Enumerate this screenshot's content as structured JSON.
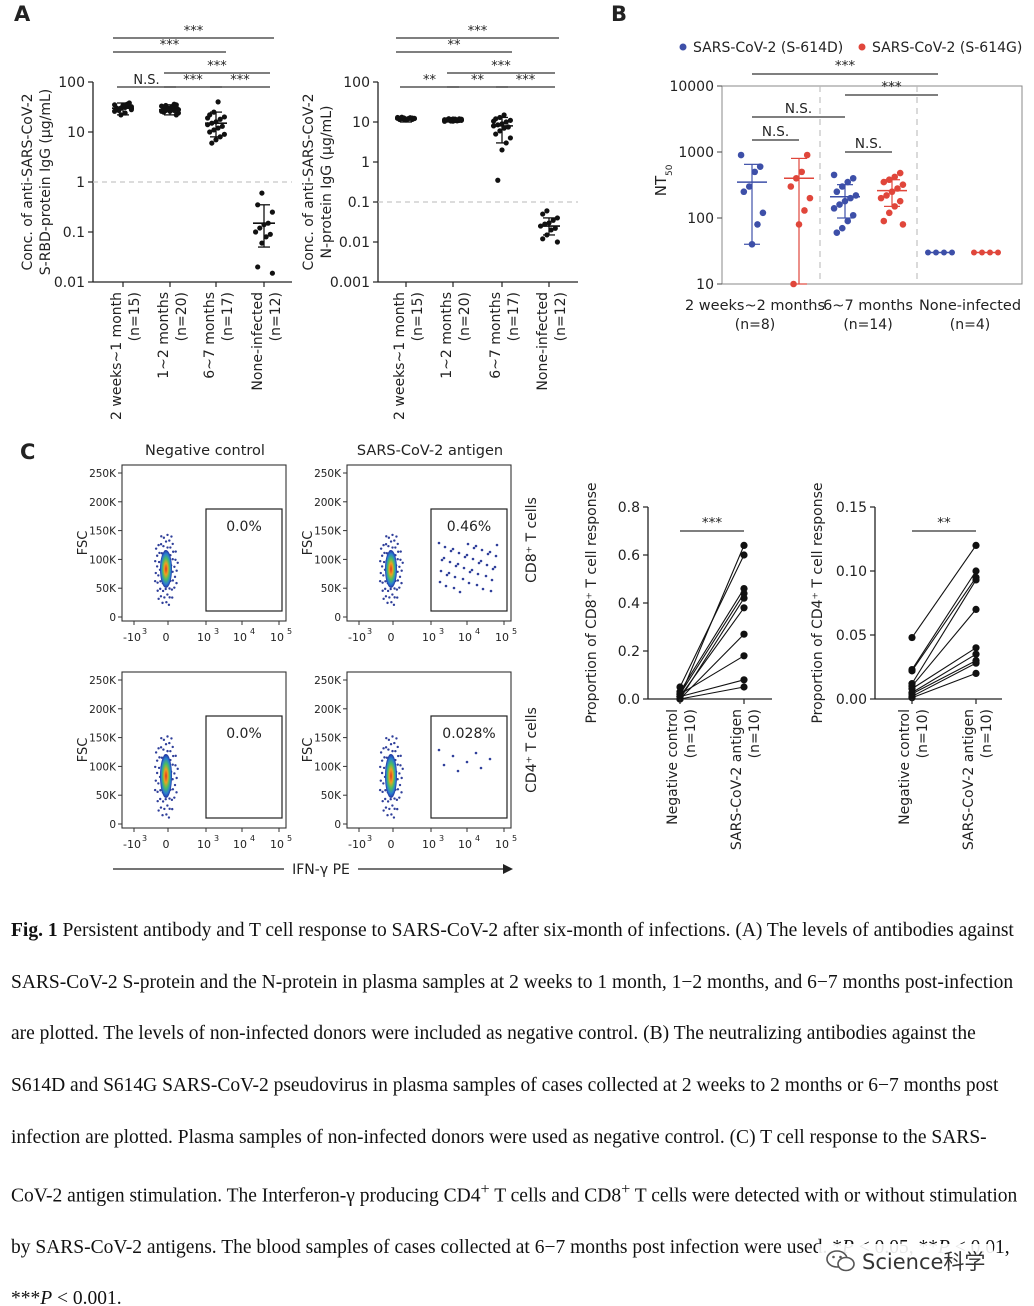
{
  "panels": {
    "A": "A",
    "B": "B",
    "C": "C"
  },
  "sig": {
    "ns": "N.S.",
    "s3": "***",
    "s2": "**"
  },
  "chart_data": [
    {
      "id": "A-left",
      "type": "scatter",
      "scale": "log10",
      "ylabel_line1": "Conc. of anti-SARS-CoV-2",
      "ylabel_line2": "S-RBD-protein IgG (μg/mL)",
      "ylim": [
        0.01,
        100
      ],
      "yticks": [
        {
          "v": 0.01,
          "label": "0.01"
        },
        {
          "v": 0.1,
          "label": "0.1"
        },
        {
          "v": 1,
          "label": "1"
        },
        {
          "v": 10,
          "label": "10"
        },
        {
          "v": 100,
          "label": "100"
        }
      ],
      "threshold": 1,
      "categories": [
        {
          "name": "2 weeks~1 month",
          "n": "(n=15)",
          "median": 30,
          "err": [
            22,
            38
          ],
          "points": [
            35,
            33,
            31,
            30,
            29,
            28,
            36,
            34,
            27,
            26,
            38,
            24,
            22,
            30,
            32
          ]
        },
        {
          "name": "1~2 months",
          "n": "(n=20)",
          "median": 28,
          "err": [
            22,
            35
          ],
          "points": [
            35,
            32,
            30,
            29,
            28,
            27,
            26,
            34,
            33,
            31,
            30,
            29,
            25,
            24,
            36,
            28,
            27,
            26,
            22,
            30
          ]
        },
        {
          "name": "6~7 months",
          "n": "(n=17)",
          "median": 15,
          "err": [
            8,
            25
          ],
          "points": [
            40,
            25,
            22,
            20,
            18,
            16,
            15,
            14,
            13,
            12,
            11,
            10,
            9,
            8,
            7,
            6,
            19
          ]
        },
        {
          "name": "None-infected",
          "n": "(n=12)",
          "median": 0.15,
          "err": [
            0.05,
            0.35
          ],
          "points": [
            0.6,
            0.35,
            0.25,
            0.15,
            0.14,
            0.12,
            0.1,
            0.09,
            0.08,
            0.06,
            0.02,
            0.015
          ]
        }
      ],
      "comparisons": [
        {
          "from": 0,
          "to": 3,
          "label": "***"
        },
        {
          "from": 0,
          "to": 2,
          "label": "***"
        },
        {
          "from": 1,
          "to": 3,
          "label": "***"
        },
        {
          "from": 0,
          "to": 1,
          "label": "N.S."
        },
        {
          "from": 1,
          "to": 2,
          "label": "***"
        },
        {
          "from": 2,
          "to": 3,
          "label": "***"
        }
      ]
    },
    {
      "id": "A-right",
      "type": "scatter",
      "scale": "log10",
      "ylabel_line1": "Conc. of anti-SARS-CoV-2",
      "ylabel_line2": "N-protein IgG (μg/mL)",
      "ylim": [
        0.001,
        100
      ],
      "yticks": [
        {
          "v": 0.001,
          "label": "0.001"
        },
        {
          "v": 0.01,
          "label": "0.01"
        },
        {
          "v": 0.1,
          "label": "0.1"
        },
        {
          "v": 1,
          "label": "1"
        },
        {
          "v": 10,
          "label": "10"
        },
        {
          "v": 100,
          "label": "100"
        }
      ],
      "threshold": 0.1,
      "categories": [
        {
          "name": "2 weeks~1 month",
          "n": "(n=15)",
          "median": 12,
          "err": [
            10,
            13
          ],
          "points": [
            13,
            12.5,
            12,
            11.8,
            11.5,
            12.2,
            12.8,
            11.2,
            13.2,
            12.4,
            11.6,
            12.1,
            12.6,
            11.9,
            12.3
          ]
        },
        {
          "name": "1~2 months",
          "n": "(n=20)",
          "median": 11,
          "err": [
            10,
            12
          ],
          "points": [
            12,
            11.8,
            11.5,
            11.2,
            11,
            10.8,
            10.5,
            11.6,
            11.4,
            11.1,
            10.9,
            10.6,
            11.3,
            11.7,
            10.7,
            11.9,
            12.1,
            10.4,
            11,
            11.2
          ]
        },
        {
          "name": "6~7 months",
          "n": "(n=17)",
          "median": 8,
          "err": [
            3,
            13
          ],
          "points": [
            15,
            13,
            12,
            11,
            10,
            9,
            8.5,
            8,
            7.5,
            7,
            6,
            5,
            4,
            3,
            2,
            0.35,
            10.5
          ]
        },
        {
          "name": "None-infected",
          "n": "(n=12)",
          "median": 0.025,
          "err": [
            0.015,
            0.04
          ],
          "points": [
            0.06,
            0.05,
            0.04,
            0.035,
            0.03,
            0.028,
            0.025,
            0.022,
            0.02,
            0.015,
            0.012,
            0.01
          ]
        }
      ],
      "comparisons": [
        {
          "from": 0,
          "to": 3,
          "label": "***"
        },
        {
          "from": 0,
          "to": 2,
          "label": "**"
        },
        {
          "from": 1,
          "to": 3,
          "label": "***"
        },
        {
          "from": 0,
          "to": 1,
          "label": "**"
        },
        {
          "from": 1,
          "to": 2,
          "label": "**"
        },
        {
          "from": 2,
          "to": 3,
          "label": "***"
        }
      ]
    },
    {
      "id": "B",
      "type": "scatter",
      "scale": "log10",
      "ylabel": "NT",
      "ylabel_sub": "50",
      "ylim": [
        10,
        10000
      ],
      "yticks": [
        {
          "v": 10,
          "label": "10"
        },
        {
          "v": 100,
          "label": "100"
        },
        {
          "v": 1000,
          "label": "1000"
        },
        {
          "v": 10000,
          "label": "10000"
        }
      ],
      "legend": [
        {
          "name": "SARS-CoV-2 (S-614D)",
          "color": "#3d4fa8"
        },
        {
          "name": "SARS-CoV-2 (S-614G)",
          "color": "#e0463b"
        }
      ],
      "groups": [
        {
          "name": "2 weeks~2 months",
          "n": "(n=8)",
          "d": {
            "median": 350,
            "err": [
              40,
              650
            ],
            "points": [
              900,
              600,
              500,
              300,
              250,
              120,
              80,
              40
            ]
          },
          "g": {
            "median": 400,
            "err": [
              10,
              800
            ],
            "points": [
              900,
              500,
              400,
              300,
              200,
              130,
              80,
              10
            ]
          }
        },
        {
          "name": "6~7 months",
          "n": "(n=14)",
          "d": {
            "median": 210,
            "err": [
              100,
              320
            ],
            "points": [
              450,
              400,
              350,
              300,
              250,
              220,
              200,
              180,
              160,
              140,
              110,
              90,
              70,
              60
            ]
          },
          "g": {
            "median": 260,
            "err": [
              150,
              380
            ],
            "points": [
              480,
              420,
              380,
              350,
              320,
              280,
              250,
              220,
              200,
              180,
              150,
              120,
              90,
              80
            ]
          }
        },
        {
          "name": "None-infected",
          "n": "(n=4)",
          "d": {
            "points": [
              30,
              30,
              30,
              30
            ]
          },
          "g": {
            "points": [
              30,
              30,
              30,
              30
            ]
          }
        }
      ],
      "comparisons": [
        {
          "label": "***",
          "span": "2 weeks~2 months to None-infected"
        },
        {
          "label": "N.S.",
          "span": "2 weeks~2 months to 6~7 months"
        },
        {
          "label": "***",
          "span": "6~7 months to None-infected"
        },
        {
          "label": "N.S.",
          "span": "2 weeks~2 months S-614D vs S-614G"
        },
        {
          "label": "N.S.",
          "span": "6~7 months S-614D vs S-614G"
        }
      ]
    },
    {
      "id": "C-flow",
      "type": "scatter",
      "titles": [
        "Negative control",
        "SARS-CoV-2 antigen"
      ],
      "ylabel": "FSC",
      "yticks": [
        "0",
        "50K",
        "100K",
        "150K",
        "200K",
        "250K"
      ],
      "xticks_base": [
        "-10",
        "0",
        "10",
        "10",
        "10"
      ],
      "xticks_exp": [
        "3",
        "",
        "3",
        "4",
        "5"
      ],
      "row_labels": [
        "CD8⁺ T cells",
        "CD4⁺ T cells"
      ],
      "xlabel": "IFN-γ PE",
      "gates": [
        [
          "0.0%",
          "0.46%"
        ],
        [
          "0.0%",
          "0.028%"
        ]
      ]
    },
    {
      "id": "C-CD8",
      "type": "line",
      "ylabel": "Proportion of CD8⁺ T cell response",
      "ylim": [
        0,
        0.8
      ],
      "yticks": [
        {
          "v": 0,
          "label": "0.0"
        },
        {
          "v": 0.2,
          "label": "0.2"
        },
        {
          "v": 0.4,
          "label": "0.4"
        },
        {
          "v": 0.6,
          "label": "0.6"
        },
        {
          "v": 0.8,
          "label": "0.8"
        }
      ],
      "categories": [
        {
          "name": "Negative control",
          "n": "(n=10)"
        },
        {
          "name": "SARS-CoV-2 antigen",
          "n": "(n=10)"
        }
      ],
      "pairs": [
        [
          0.01,
          0.64
        ],
        [
          0.05,
          0.6
        ],
        [
          0.03,
          0.46
        ],
        [
          0.02,
          0.44
        ],
        [
          0.0,
          0.42
        ],
        [
          0.01,
          0.38
        ],
        [
          0.0,
          0.27
        ],
        [
          0.02,
          0.18
        ],
        [
          0.01,
          0.08
        ],
        [
          0.0,
          0.05
        ]
      ],
      "sig": "***"
    },
    {
      "id": "C-CD4",
      "type": "line",
      "ylabel": "Proportion of CD4⁺ T cell response",
      "ylim": [
        0,
        0.15
      ],
      "yticks": [
        {
          "v": 0,
          "label": "0.00"
        },
        {
          "v": 0.05,
          "label": "0.05"
        },
        {
          "v": 0.1,
          "label": "0.10"
        },
        {
          "v": 0.15,
          "label": "0.15"
        }
      ],
      "categories": [
        {
          "name": "Negative control",
          "n": "(n=10)"
        },
        {
          "name": "SARS-CoV-2 antigen",
          "n": "(n=10)"
        }
      ],
      "pairs": [
        [
          0.048,
          0.12
        ],
        [
          0.023,
          0.1
        ],
        [
          0.022,
          0.095
        ],
        [
          0.012,
          0.093
        ],
        [
          0.01,
          0.07
        ],
        [
          0.008,
          0.04
        ],
        [
          0.005,
          0.035
        ],
        [
          0.004,
          0.03
        ],
        [
          0.002,
          0.028
        ],
        [
          0.001,
          0.02
        ]
      ],
      "sig": "**"
    }
  ],
  "caption": {
    "label": "Fig. 1",
    "p1": " Persistent antibody and T cell response to SARS-CoV-2 after six-month of infections. (A) The levels of antibodies against SARS-CoV-2 S-protein and the N-protein in plasma samples at 2 weeks to 1 month, 1−2 months, and 6−7 months post-infection are plotted. The levels of non-infected donors were included as negative control. (B) The neutralizing antibodies against the S614D and S614G SARS-CoV-2 pseudovirus in plasma samples of cases collected at 2 weeks to 2 months or 6−7 months post infection are plotted. Plasma samples of non-infected donors were used as negative control. (C) T cell response to the SARS-CoV-2 antigen stimulation. The Interferon-γ producing CD4",
    "sup1": "+",
    "p2": " T cells and CD8",
    "sup2": "+",
    "p3": " T cells were detected with or without stimulation by SARS-CoV-2 antigens. The blood samples of cases collected at 6−7 months post infection were used. *",
    "p_italic": "P",
    "p4": " < 0.05, **",
    "p5": " < 0.01, ***",
    "p6": " < 0.001."
  },
  "watermark": "Science科学"
}
